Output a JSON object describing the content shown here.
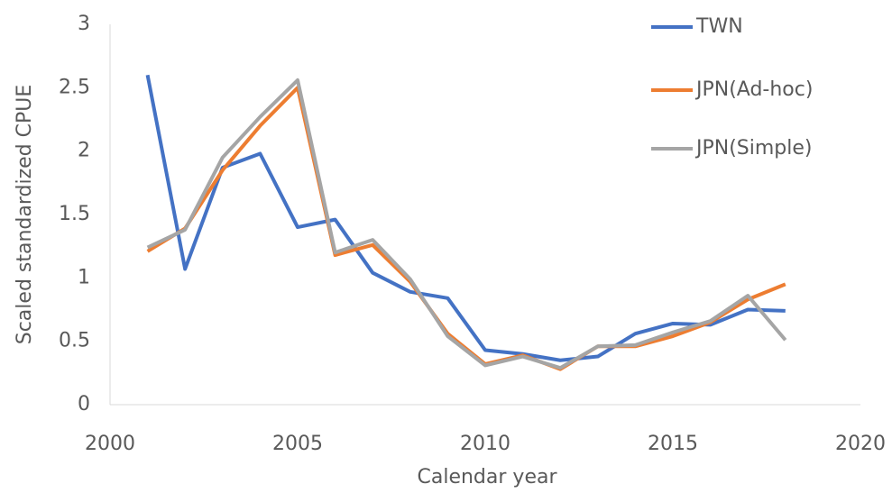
{
  "chart_data": {
    "type": "line",
    "x_label": "Calendar year",
    "y_label": "Scaled standardized CPUE",
    "x": [
      2001,
      2002,
      2003,
      2004,
      2005,
      2006,
      2007,
      2008,
      2009,
      2010,
      2011,
      2012,
      2013,
      2014,
      2015,
      2016,
      2017,
      2018
    ],
    "series": [
      {
        "name": "TWN",
        "color": "#4472c4",
        "values": [
          2.6,
          1.07,
          1.87,
          1.98,
          1.4,
          1.46,
          1.04,
          0.89,
          0.84,
          0.43,
          0.4,
          0.35,
          0.38,
          0.56,
          0.64,
          0.63,
          0.75,
          0.74
        ]
      },
      {
        "name": "JPN(Ad-hoc)",
        "color": "#ed7d31",
        "values": [
          1.21,
          1.39,
          1.85,
          2.2,
          2.5,
          1.18,
          1.26,
          0.97,
          0.56,
          0.32,
          0.39,
          0.28,
          0.46,
          0.46,
          0.54,
          0.65,
          0.83,
          0.95
        ]
      },
      {
        "name": "JPN(Simple)",
        "color": "#a5a5a5",
        "values": [
          1.24,
          1.38,
          1.95,
          2.27,
          2.56,
          1.2,
          1.3,
          0.99,
          0.54,
          0.31,
          0.38,
          0.29,
          0.46,
          0.47,
          0.57,
          0.66,
          0.86,
          0.51
        ]
      }
    ],
    "xlim": [
      2000,
      2020
    ],
    "xticks": [
      2000,
      2005,
      2010,
      2015,
      2020
    ],
    "ylim": [
      0,
      3
    ],
    "yticks": [
      0,
      0.5,
      1,
      1.5,
      2,
      2.5,
      3
    ],
    "grid": false,
    "legend": "top-right"
  }
}
